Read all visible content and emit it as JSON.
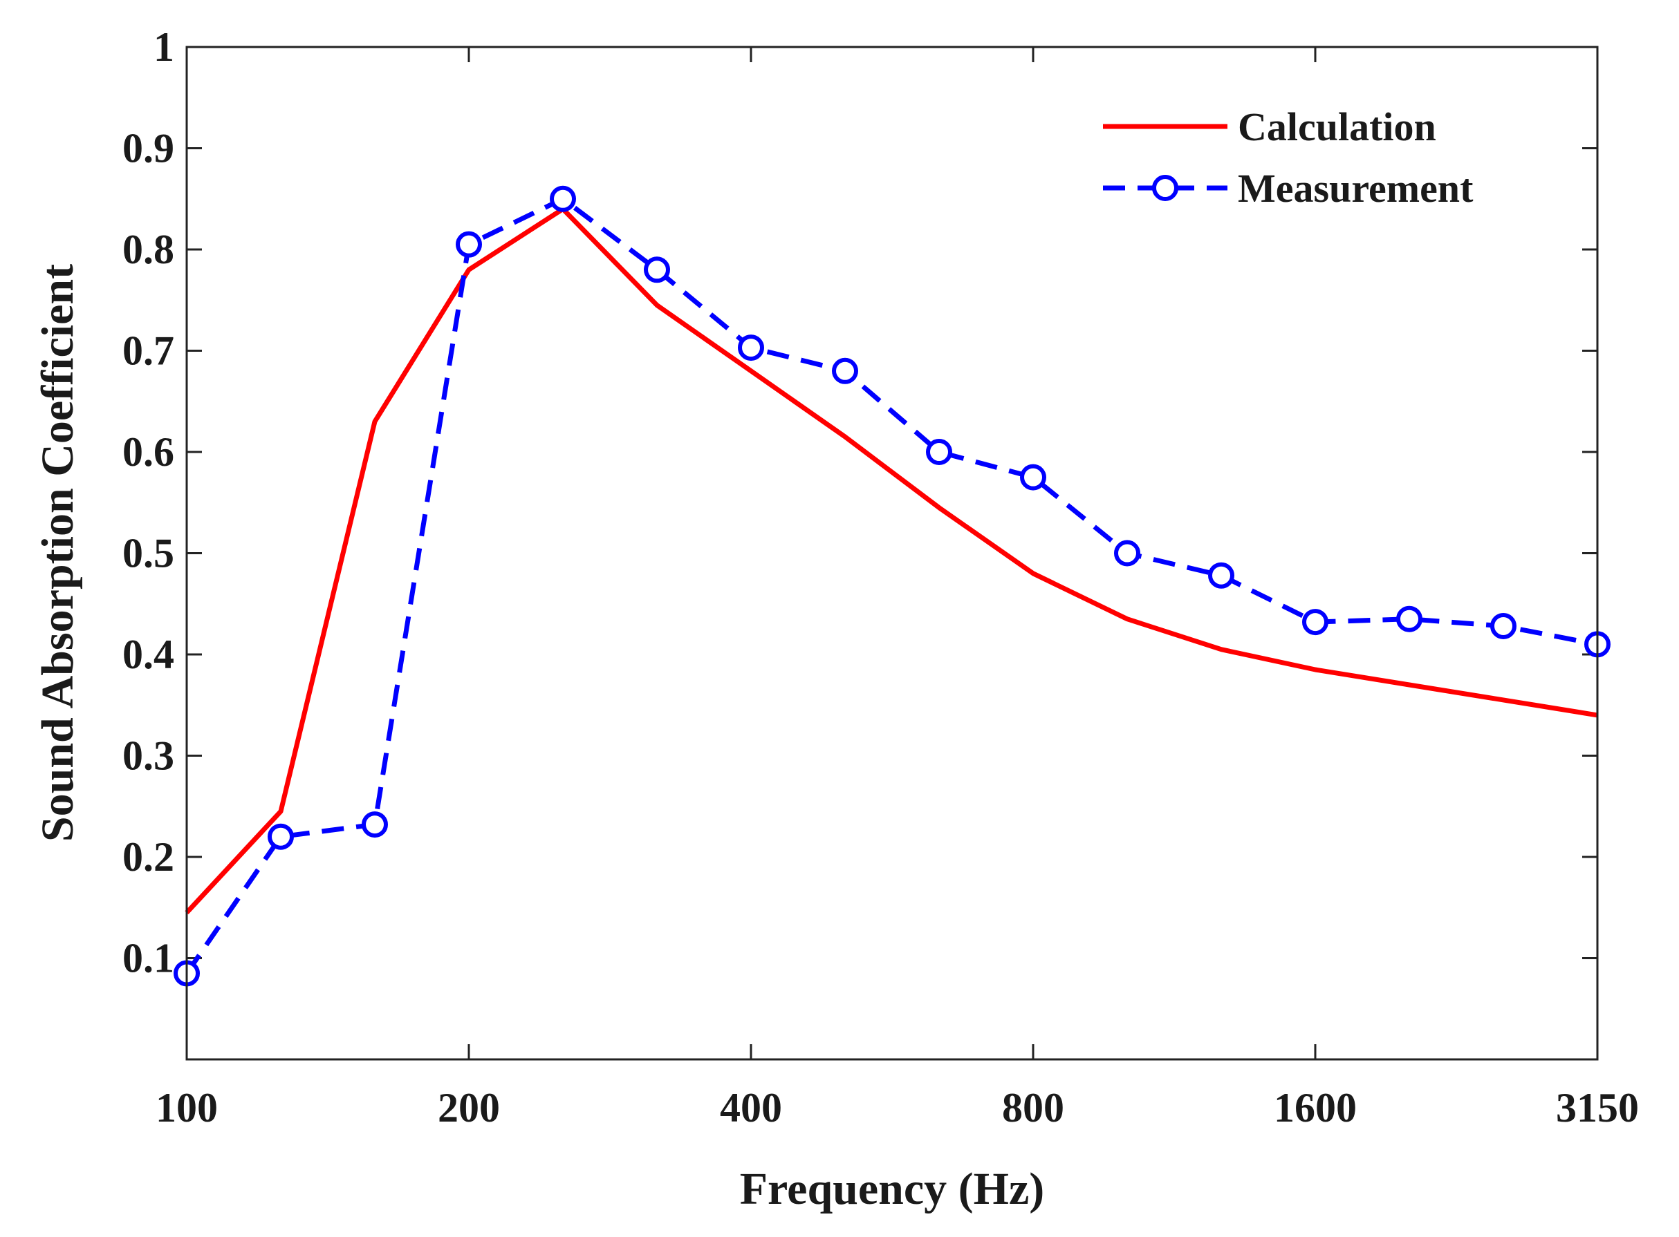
{
  "chart_data": {
    "type": "line",
    "title": "",
    "xlabel": "Frequency (Hz)",
    "ylabel": "Sound Absorption Coefficient",
    "x_scale": "third-octave index",
    "categories": [
      "100",
      "125",
      "160",
      "200",
      "250",
      "315",
      "400",
      "500",
      "630",
      "800",
      "1000",
      "1250",
      "1600",
      "2000",
      "2500",
      "3150"
    ],
    "xtick_labels": [
      "100",
      "200",
      "400",
      "800",
      "1600",
      "3150"
    ],
    "xtick_categories": [
      "100",
      "200",
      "400",
      "800",
      "1600",
      "3150"
    ],
    "ylim": [
      0,
      1
    ],
    "yticks": [
      0.1,
      0.2,
      0.3,
      0.4,
      0.5,
      0.6,
      0.7,
      0.8,
      0.9,
      1
    ],
    "ytick_labels": [
      "0.1",
      "0.2",
      "0.3",
      "0.4",
      "0.5",
      "0.6",
      "0.7",
      "0.8",
      "0.9",
      "1"
    ],
    "grid": false,
    "legend_position": "top-right",
    "series": [
      {
        "name": "Calculation",
        "color": "#ff0000",
        "style": "solid",
        "marker": "none",
        "values": [
          0.145,
          0.245,
          0.63,
          0.78,
          0.84,
          0.745,
          0.68,
          0.615,
          0.545,
          0.48,
          0.435,
          0.405,
          0.385,
          0.37,
          0.355,
          0.34
        ]
      },
      {
        "name": "Measurement",
        "color": "#0000ff",
        "style": "dashed",
        "marker": "circle",
        "values": [
          0.085,
          0.22,
          0.232,
          0.805,
          0.85,
          0.78,
          0.703,
          0.68,
          0.6,
          0.575,
          0.5,
          0.478,
          0.432,
          0.435,
          0.428,
          0.41
        ]
      }
    ]
  }
}
